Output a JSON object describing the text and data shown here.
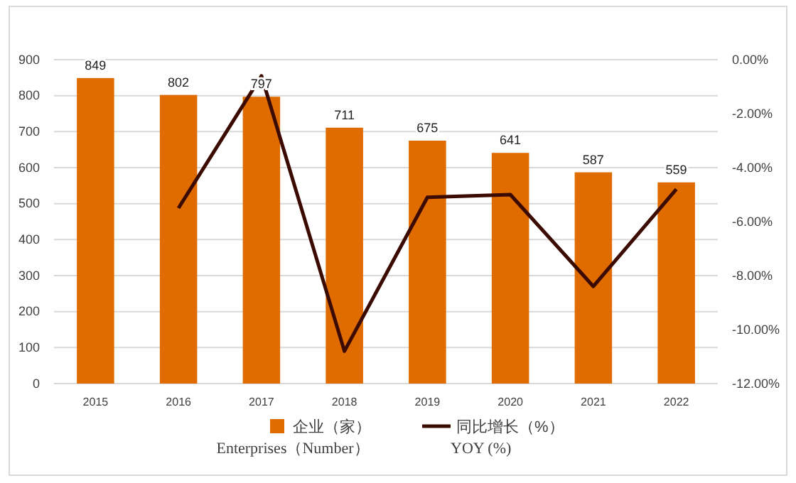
{
  "chart_data": {
    "type": "bar",
    "categories": [
      "2015",
      "2016",
      "2017",
      "2018",
      "2019",
      "2020",
      "2021",
      "2022"
    ],
    "series": [
      {
        "name": "企业（家）",
        "color": "#e06c00",
        "values": [
          849,
          802,
          797,
          711,
          675,
          641,
          587,
          559
        ],
        "value_labels": [
          "849",
          "802",
          "797",
          "711",
          "675",
          "641",
          "587",
          "559"
        ]
      },
      {
        "name": "同比增长（%）",
        "type": "line",
        "axis": "y2",
        "color": "#3b0a00",
        "values": [
          null,
          -5.5,
          -0.6,
          -10.8,
          -5.1,
          -5.0,
          -8.4,
          -4.8
        ]
      }
    ],
    "ylim": [
      0,
      900
    ],
    "yticks": [
      0,
      100,
      200,
      300,
      400,
      500,
      600,
      700,
      800,
      900
    ],
    "y2lim": [
      -12,
      0
    ],
    "y2ticks": [
      {
        "value": 0,
        "label": "0.00%"
      },
      {
        "value": -2,
        "label": "-2.00%"
      },
      {
        "value": -4,
        "label": "-4.00%"
      },
      {
        "value": -6,
        "label": "-6.00%"
      },
      {
        "value": -8,
        "label": "-8.00%"
      },
      {
        "value": -10,
        "label": "-10.00%"
      },
      {
        "value": -12,
        "label": "-12.00%"
      }
    ],
    "grid": "y",
    "legend": "bottom",
    "marker": "none",
    "line_style": "solid",
    "annotations": [
      "Enterprises（Number）",
      "YOY (%)"
    ]
  }
}
